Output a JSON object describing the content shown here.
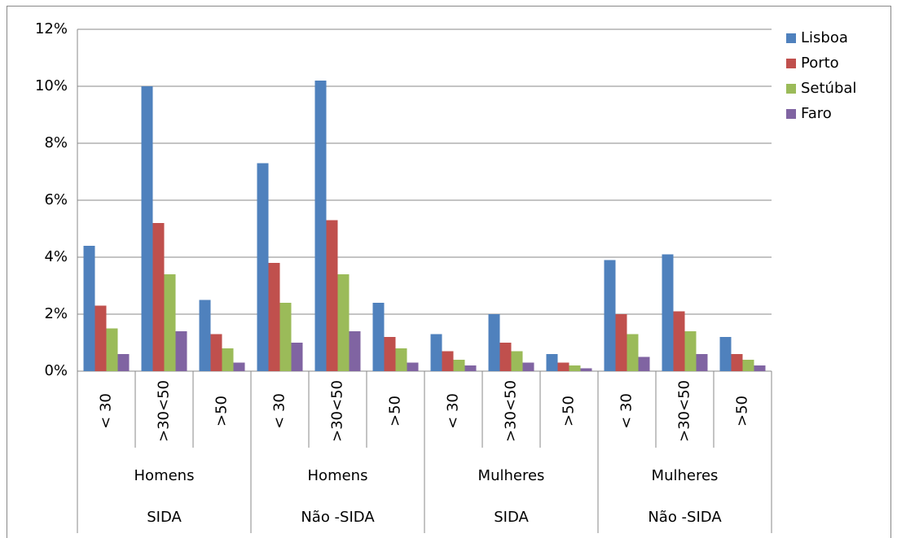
{
  "chart_data": {
    "type": "bar",
    "categories": [
      "< 30",
      ">30<50",
      ">50",
      "< 30",
      ">30<50",
      ">50",
      "< 30",
      ">30<50",
      ">50",
      "< 30",
      ">30<50",
      ">50"
    ],
    "category_levels": [
      [
        "Homens",
        "Homens",
        "Mulheres",
        "Mulheres"
      ],
      [
        "SIDA",
        "Não -SIDA",
        "SIDA",
        "Não -SIDA"
      ]
    ],
    "series": [
      {
        "name": "Lisboa",
        "color": "#4f81bd",
        "values": [
          4.4,
          10.0,
          2.5,
          7.3,
          10.2,
          2.4,
          1.3,
          2.0,
          0.6,
          3.9,
          4.1,
          1.2
        ]
      },
      {
        "name": "Porto",
        "color": "#c0504d",
        "values": [
          2.3,
          5.2,
          1.3,
          3.8,
          5.3,
          1.2,
          0.7,
          1.0,
          0.3,
          2.0,
          2.1,
          0.6
        ]
      },
      {
        "name": "Setúbal",
        "color": "#9bbb59",
        "values": [
          1.5,
          3.4,
          0.8,
          2.4,
          3.4,
          0.8,
          0.4,
          0.7,
          0.2,
          1.3,
          1.4,
          0.4
        ]
      },
      {
        "name": "Faro",
        "color": "#8064a2",
        "values": [
          0.6,
          1.4,
          0.3,
          1.0,
          1.4,
          0.3,
          0.2,
          0.3,
          0.1,
          0.5,
          0.6,
          0.2
        ]
      }
    ],
    "ylim": [
      0,
      12
    ],
    "yticks": [
      {
        "value": 0,
        "label": "0%"
      },
      {
        "value": 2,
        "label": "2%"
      },
      {
        "value": 4,
        "label": "4%"
      },
      {
        "value": 6,
        "label": "6%"
      },
      {
        "value": 8,
        "label": "8%"
      },
      {
        "value": 10,
        "label": "10%"
      },
      {
        "value": 12,
        "label": "12%"
      }
    ],
    "grid": true,
    "legend": "right"
  }
}
